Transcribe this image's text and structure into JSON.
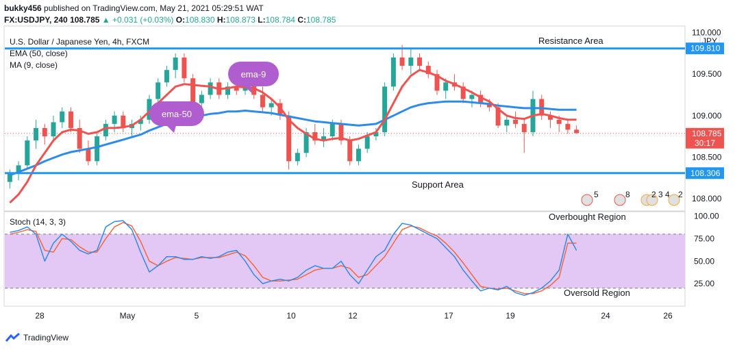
{
  "header": {
    "publisher": "bukky456",
    "published_text": "published on TradingView.com, May 21, 2021 05:29:51 WAT",
    "symbol": "FX:USDJPY, 240",
    "last": "108.785",
    "change": "+0.031 (+0.03%)",
    "o_label": "O:",
    "o_value": "108.830",
    "h_label": "H:",
    "h_value": "108.873",
    "l_label": "L:",
    "l_value": "108.784",
    "c_label": "C:",
    "c_value": "108.785"
  },
  "legend": {
    "instrument": "U.S. Dollar / Japanese Yen, 4h, FXCM",
    "ema": "EMA (50, close)",
    "ma": "MA (9, close)",
    "stoch": "Stoch (14, 3, 3)"
  },
  "annotations": {
    "resistance": "Resistance Area",
    "support": "Support Area",
    "overbought": "Overbought Region",
    "oversold": "Oversold Region",
    "ema9_bubble": "ema-9",
    "ema50_bubble": "ema-50"
  },
  "currency": "JPY",
  "price_tag": {
    "price": "108.785",
    "countdown": "30:17"
  },
  "resistance_tag": "109.810",
  "support_tag": "108.306",
  "footer": {
    "brand": "TradingView"
  },
  "event_markers": [
    "5",
    "8",
    "2 3 4",
    "2"
  ],
  "colors": {
    "up": "#26a69a",
    "down": "#ef5350",
    "ma9": "#ef5350",
    "ema50": "#2e8be6",
    "level_line": "#2196f3",
    "bubble": "#b05ecf",
    "stoch_band": "#e3c8f5",
    "stoch_k": "#2e8be6",
    "stoch_d": "#f4663f"
  },
  "chart_data": [
    {
      "type": "candlestick",
      "title": "U.S. Dollar / Japanese Yen, 4h, FXCM",
      "ylim": [
        107.85,
        110.08
      ],
      "y_ticks": [
        "108.000",
        "108.500",
        "109.000",
        "109.500",
        "110.000"
      ],
      "x_ticks": [
        "28",
        "May",
        "5",
        "10",
        "12",
        "17",
        "19",
        "24",
        "26"
      ],
      "levels": {
        "resistance": 109.81,
        "support": 108.306,
        "last": 108.785
      },
      "candles": [
        [
          108.2,
          108.35,
          108.12,
          108.3
        ],
        [
          108.3,
          108.45,
          108.22,
          108.4
        ],
        [
          108.4,
          108.75,
          108.35,
          108.7
        ],
        [
          108.7,
          108.95,
          108.6,
          108.85
        ],
        [
          108.85,
          108.9,
          108.65,
          108.75
        ],
        [
          108.75,
          109.0,
          108.7,
          108.92
        ],
        [
          108.92,
          109.1,
          108.85,
          109.05
        ],
        [
          109.05,
          109.1,
          108.8,
          108.85
        ],
        [
          108.85,
          108.95,
          108.55,
          108.6
        ],
        [
          108.6,
          108.7,
          108.4,
          108.45
        ],
        [
          108.45,
          108.8,
          108.4,
          108.75
        ],
        [
          108.75,
          108.95,
          108.7,
          108.9
        ],
        [
          108.9,
          109.05,
          108.8,
          109.0
        ],
        [
          109.0,
          109.05,
          108.8,
          108.85
        ],
        [
          108.85,
          108.95,
          108.75,
          108.9
        ],
        [
          108.9,
          109.0,
          108.82,
          108.95
        ],
        [
          108.95,
          109.25,
          108.9,
          109.2
        ],
        [
          109.2,
          109.45,
          109.15,
          109.4
        ],
        [
          109.4,
          109.6,
          109.35,
          109.55
        ],
        [
          109.55,
          109.75,
          109.45,
          109.7
        ],
        [
          109.7,
          109.75,
          109.4,
          109.45
        ],
        [
          109.45,
          109.5,
          109.1,
          109.15
        ],
        [
          109.15,
          109.3,
          109.05,
          109.25
        ],
        [
          109.25,
          109.45,
          109.2,
          109.4
        ],
        [
          109.4,
          109.45,
          109.2,
          109.25
        ],
        [
          109.25,
          109.4,
          109.2,
          109.35
        ],
        [
          109.35,
          109.45,
          109.25,
          109.3
        ],
        [
          109.3,
          109.5,
          109.25,
          109.45
        ],
        [
          109.45,
          109.5,
          109.2,
          109.25
        ],
        [
          109.25,
          109.35,
          109.05,
          109.1
        ],
        [
          109.1,
          109.2,
          109.0,
          109.15
        ],
        [
          109.15,
          109.2,
          108.95,
          109.0
        ],
        [
          109.0,
          109.05,
          108.35,
          108.45
        ],
        [
          108.45,
          108.6,
          108.4,
          108.55
        ],
        [
          108.55,
          108.85,
          108.5,
          108.8
        ],
        [
          108.8,
          108.9,
          108.65,
          108.7
        ],
        [
          108.7,
          108.85,
          108.62,
          108.75
        ],
        [
          108.75,
          108.95,
          108.7,
          108.9
        ],
        [
          108.9,
          108.95,
          108.65,
          108.7
        ],
        [
          108.7,
          108.75,
          108.4,
          108.45
        ],
        [
          108.45,
          108.65,
          108.4,
          108.6
        ],
        [
          108.6,
          108.8,
          108.55,
          108.75
        ],
        [
          108.75,
          108.85,
          108.7,
          108.8
        ],
        [
          108.8,
          109.4,
          108.75,
          109.35
        ],
        [
          109.35,
          109.75,
          109.3,
          109.7
        ],
        [
          109.7,
          109.85,
          109.55,
          109.6
        ],
        [
          109.6,
          109.8,
          109.5,
          109.7
        ],
        [
          109.7,
          109.75,
          109.55,
          109.6
        ],
        [
          109.6,
          109.65,
          109.45,
          109.5
        ],
        [
          109.5,
          109.55,
          109.25,
          109.3
        ],
        [
          109.3,
          109.45,
          109.2,
          109.4
        ],
        [
          109.4,
          109.5,
          109.3,
          109.35
        ],
        [
          109.35,
          109.4,
          109.15,
          109.2
        ],
        [
          109.2,
          109.3,
          109.1,
          109.25
        ],
        [
          109.25,
          109.3,
          109.1,
          109.15
        ],
        [
          109.15,
          109.2,
          109.05,
          109.1
        ],
        [
          109.1,
          109.15,
          108.85,
          108.88
        ],
        [
          108.88,
          109.0,
          108.8,
          108.95
        ],
        [
          108.95,
          109.05,
          108.85,
          108.9
        ],
        [
          108.9,
          108.95,
          108.55,
          108.8
        ],
        [
          108.8,
          109.3,
          108.75,
          109.2
        ],
        [
          109.2,
          109.25,
          108.95,
          109.0
        ],
        [
          109.0,
          109.05,
          108.85,
          108.95
        ],
        [
          108.95,
          109.0,
          108.8,
          108.9
        ],
        [
          108.9,
          108.95,
          108.78,
          108.83
        ],
        [
          108.83,
          108.88,
          108.78,
          108.79
        ]
      ],
      "series": [
        {
          "name": "MA (9, close)",
          "values": [
            107.95,
            108.05,
            108.2,
            108.4,
            108.55,
            108.7,
            108.8,
            108.83,
            108.82,
            108.78,
            108.8,
            108.85,
            108.85,
            108.86,
            108.88,
            108.95,
            109.05,
            109.15,
            109.25,
            109.35,
            109.38,
            109.37,
            109.36,
            109.35,
            109.32,
            109.33,
            109.35,
            109.34,
            109.33,
            109.28,
            109.2,
            109.1,
            108.95,
            108.85,
            108.78,
            108.72,
            108.7,
            108.72,
            108.73,
            108.7,
            108.72,
            108.76,
            108.8,
            108.95,
            109.15,
            109.35,
            109.48,
            109.55,
            109.52,
            109.48,
            109.42,
            109.38,
            109.33,
            109.28,
            109.22,
            109.17,
            109.08,
            109.0,
            108.97,
            108.96,
            109.0,
            109.02,
            109.0,
            108.97,
            108.95,
            108.95
          ]
        },
        {
          "name": "EMA (50, close)",
          "values": [
            108.28,
            108.32,
            108.36,
            108.4,
            108.45,
            108.49,
            108.53,
            108.56,
            108.58,
            108.6,
            108.62,
            108.65,
            108.68,
            108.71,
            108.74,
            108.77,
            108.82,
            108.86,
            108.9,
            108.93,
            108.95,
            108.98,
            109.0,
            109.02,
            109.03,
            109.05,
            109.05,
            109.06,
            109.05,
            109.04,
            109.03,
            109.01,
            108.99,
            108.97,
            108.95,
            108.93,
            108.92,
            108.91,
            108.9,
            108.89,
            108.88,
            108.89,
            108.9,
            108.95,
            109.0,
            109.05,
            109.1,
            109.13,
            109.15,
            109.16,
            109.17,
            109.17,
            109.17,
            109.16,
            109.15,
            109.14,
            109.12,
            109.11,
            109.1,
            109.09,
            109.09,
            109.09,
            109.08,
            109.07,
            109.07,
            109.07
          ]
        }
      ]
    },
    {
      "type": "line",
      "title": "Stoch (14, 3, 3)",
      "ylim": [
        0,
        105
      ],
      "y_ticks": [
        "25.00",
        "50.00",
        "75.00",
        "100.00"
      ],
      "bands": {
        "upper": 80,
        "lower": 20
      },
      "series": [
        {
          "name": "%K",
          "values": [
            82,
            84,
            88,
            80,
            50,
            70,
            80,
            72,
            62,
            58,
            62,
            88,
            94,
            95,
            85,
            60,
            38,
            45,
            55,
            55,
            52,
            52,
            55,
            53,
            55,
            60,
            62,
            50,
            35,
            25,
            28,
            30,
            28,
            32,
            40,
            45,
            42,
            42,
            50,
            35,
            25,
            40,
            55,
            62,
            80,
            92,
            90,
            85,
            80,
            75,
            65,
            55,
            40,
            28,
            17,
            20,
            18,
            22,
            15,
            12,
            15,
            20,
            28,
            40,
            80,
            62
          ]
        },
        {
          "name": "%D",
          "values": [
            80,
            82,
            85,
            83,
            62,
            60,
            75,
            74,
            66,
            60,
            60,
            75,
            88,
            93,
            89,
            72,
            50,
            45,
            50,
            54,
            53,
            52,
            54,
            54,
            54,
            57,
            60,
            56,
            45,
            32,
            28,
            28,
            29,
            30,
            35,
            40,
            42,
            42,
            45,
            42,
            32,
            35,
            45,
            55,
            70,
            85,
            89,
            87,
            82,
            78,
            70,
            60,
            48,
            35,
            22,
            20,
            19,
            20,
            17,
            14,
            14,
            17,
            23,
            32,
            70,
            70
          ]
        }
      ]
    }
  ]
}
